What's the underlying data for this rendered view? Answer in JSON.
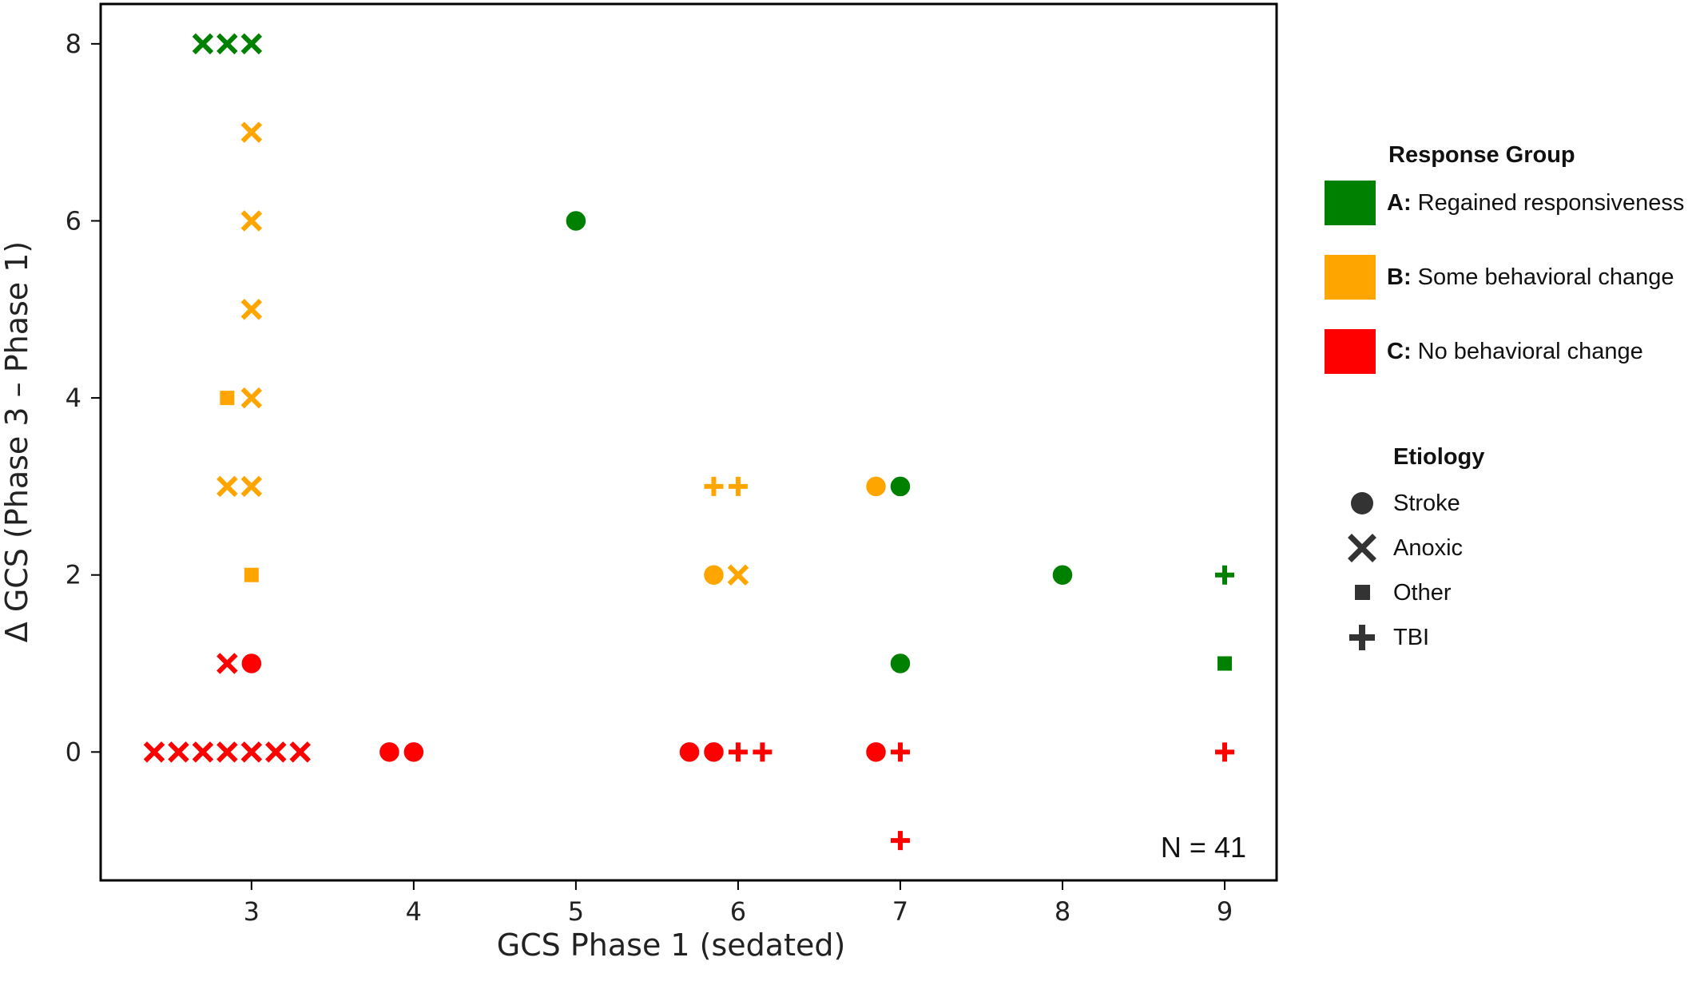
{
  "chart_data": {
    "type": "scatter",
    "title": "",
    "xlabel": "GCS Phase 1 (sedated)",
    "ylabel": "Δ GCS (Phase 3 – Phase 1)",
    "xlim": [
      2.07,
      9.32
    ],
    "ylim": [
      -1.45,
      8.45
    ],
    "xticks": [
      3,
      4,
      5,
      6,
      7,
      8,
      9
    ],
    "yticks": [
      0,
      2,
      4,
      6,
      8
    ],
    "grid": false,
    "legend_placement": "right, outside plot",
    "annotation": "N = 41",
    "colors": {
      "A": "#008000",
      "B": "#FFA500",
      "C": "#FF0000"
    },
    "response_legend": {
      "title": "Response Group",
      "entries": [
        {
          "key": "A",
          "letter": "A:",
          "label": "Regained responsiveness",
          "color": "#008000"
        },
        {
          "key": "B",
          "letter": "B:",
          "label": "Some behavioral change",
          "color": "#FFA500"
        },
        {
          "key": "C",
          "letter": "C:",
          "label": "No behavioral change",
          "color": "#FF0000"
        }
      ]
    },
    "etiology_legend": {
      "title": "Etiology",
      "entries": [
        {
          "marker": "circle",
          "label": "Stroke"
        },
        {
          "marker": "x",
          "label": "Anoxic"
        },
        {
          "marker": "square",
          "label": "Other"
        },
        {
          "marker": "plus",
          "label": "TBI"
        }
      ]
    },
    "points": [
      {
        "x": 2.7,
        "y": 8,
        "group": "A",
        "etiology": "x"
      },
      {
        "x": 2.85,
        "y": 8,
        "group": "A",
        "etiology": "x"
      },
      {
        "x": 3.0,
        "y": 8,
        "group": "A",
        "etiology": "x"
      },
      {
        "x": 3.0,
        "y": 7,
        "group": "B",
        "etiology": "x"
      },
      {
        "x": 3.0,
        "y": 6,
        "group": "B",
        "etiology": "x"
      },
      {
        "x": 3.0,
        "y": 5,
        "group": "B",
        "etiology": "x"
      },
      {
        "x": 2.85,
        "y": 4,
        "group": "B",
        "etiology": "square"
      },
      {
        "x": 3.0,
        "y": 4,
        "group": "B",
        "etiology": "x"
      },
      {
        "x": 2.85,
        "y": 3,
        "group": "B",
        "etiology": "x"
      },
      {
        "x": 3.0,
        "y": 3,
        "group": "B",
        "etiology": "x"
      },
      {
        "x": 3.0,
        "y": 2,
        "group": "B",
        "etiology": "square"
      },
      {
        "x": 2.85,
        "y": 1,
        "group": "C",
        "etiology": "x"
      },
      {
        "x": 3.0,
        "y": 1,
        "group": "C",
        "etiology": "circle"
      },
      {
        "x": 2.4,
        "y": 0,
        "group": "C",
        "etiology": "x"
      },
      {
        "x": 2.55,
        "y": 0,
        "group": "C",
        "etiology": "x"
      },
      {
        "x": 2.7,
        "y": 0,
        "group": "C",
        "etiology": "x"
      },
      {
        "x": 2.85,
        "y": 0,
        "group": "C",
        "etiology": "x"
      },
      {
        "x": 3.0,
        "y": 0,
        "group": "C",
        "etiology": "x"
      },
      {
        "x": 3.15,
        "y": 0,
        "group": "C",
        "etiology": "x"
      },
      {
        "x": 3.3,
        "y": 0,
        "group": "C",
        "etiology": "x"
      },
      {
        "x": 3.85,
        "y": 0,
        "group": "C",
        "etiology": "circle"
      },
      {
        "x": 4.0,
        "y": 0,
        "group": "C",
        "etiology": "circle"
      },
      {
        "x": 5.0,
        "y": 6,
        "group": "A",
        "etiology": "circle"
      },
      {
        "x": 5.85,
        "y": 3,
        "group": "B",
        "etiology": "plus"
      },
      {
        "x": 6.0,
        "y": 3,
        "group": "B",
        "etiology": "plus"
      },
      {
        "x": 5.85,
        "y": 2,
        "group": "B",
        "etiology": "circle"
      },
      {
        "x": 6.0,
        "y": 2,
        "group": "B",
        "etiology": "x"
      },
      {
        "x": 5.7,
        "y": 0,
        "group": "C",
        "etiology": "circle"
      },
      {
        "x": 5.85,
        "y": 0,
        "group": "C",
        "etiology": "circle"
      },
      {
        "x": 6.0,
        "y": 0,
        "group": "C",
        "etiology": "plus"
      },
      {
        "x": 6.15,
        "y": 0,
        "group": "C",
        "etiology": "plus"
      },
      {
        "x": 6.85,
        "y": 3,
        "group": "B",
        "etiology": "circle"
      },
      {
        "x": 7.0,
        "y": 3,
        "group": "A",
        "etiology": "circle"
      },
      {
        "x": 7.0,
        "y": 1,
        "group": "A",
        "etiology": "circle"
      },
      {
        "x": 6.85,
        "y": 0,
        "group": "C",
        "etiology": "circle"
      },
      {
        "x": 7.0,
        "y": 0,
        "group": "C",
        "etiology": "plus"
      },
      {
        "x": 7.0,
        "y": -1,
        "group": "C",
        "etiology": "plus"
      },
      {
        "x": 8.0,
        "y": 2,
        "group": "A",
        "etiology": "circle"
      },
      {
        "x": 9.0,
        "y": 2,
        "group": "A",
        "etiology": "plus"
      },
      {
        "x": 9.0,
        "y": 1,
        "group": "A",
        "etiology": "square"
      },
      {
        "x": 9.0,
        "y": 0,
        "group": "C",
        "etiology": "plus"
      }
    ]
  }
}
